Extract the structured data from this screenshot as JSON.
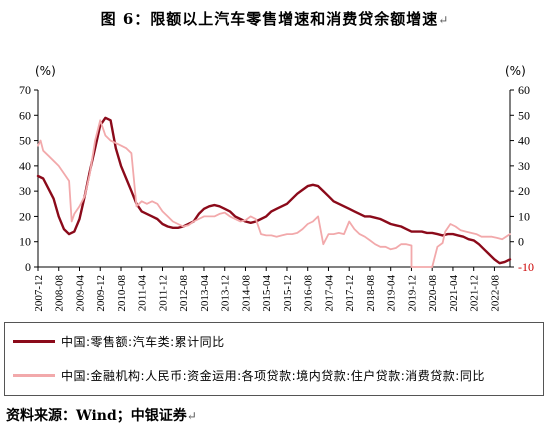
{
  "title": "图 6：限额以上汽车零售增速和消费贷余额增速",
  "title_mark": "↵",
  "source": "资料来源：Wind；中银证券",
  "source_mark": "↵",
  "chart_data": {
    "type": "line",
    "left_axis": {
      "unit": "(%)",
      "ylim": [
        0,
        70
      ],
      "ticks": [
        0,
        10,
        20,
        30,
        40,
        50,
        60,
        70
      ]
    },
    "right_axis": {
      "unit": "(%)",
      "ylim": [
        -10,
        60
      ],
      "ticks": [
        -10,
        0,
        10,
        20,
        30,
        40,
        50,
        60
      ],
      "tick_color_negative": "#cc0000"
    },
    "x_ticks": [
      "2007-12",
      "2008-08",
      "2009-04",
      "2009-12",
      "2010-08",
      "2011-04",
      "2011-12",
      "2012-08",
      "2013-04",
      "2013-12",
      "2014-08",
      "2015-04",
      "2015-12",
      "2016-08",
      "2017-04",
      "2017-12",
      "2018-08",
      "2019-04",
      "2019-12",
      "2020-08",
      "2021-04",
      "2021-12",
      "2022-08"
    ],
    "x_range": [
      "2007-12",
      "2023-02"
    ],
    "grid": false,
    "series": [
      {
        "name": "中国:零售额:汽车类:累计同比",
        "axis": "left",
        "color": "#8b0a1a",
        "points": [
          [
            "2007-12",
            36
          ],
          [
            "2008-02",
            35
          ],
          [
            "2008-04",
            31
          ],
          [
            "2008-06",
            27
          ],
          [
            "2008-08",
            20
          ],
          [
            "2008-10",
            15
          ],
          [
            "2008-12",
            13
          ],
          [
            "2009-02",
            14
          ],
          [
            "2009-04",
            19
          ],
          [
            "2009-06",
            28
          ],
          [
            "2009-08",
            38
          ],
          [
            "2009-10",
            47
          ],
          [
            "2009-12",
            56
          ],
          [
            "2010-02",
            59
          ],
          [
            "2010-04",
            58
          ],
          [
            "2010-06",
            47
          ],
          [
            "2010-08",
            40
          ],
          [
            "2010-10",
            35
          ],
          [
            "2010-12",
            30
          ],
          [
            "2011-02",
            25
          ],
          [
            "2011-04",
            22
          ],
          [
            "2011-06",
            21
          ],
          [
            "2011-08",
            20
          ],
          [
            "2011-10",
            19
          ],
          [
            "2011-12",
            17
          ],
          [
            "2012-02",
            16
          ],
          [
            "2012-04",
            15.5
          ],
          [
            "2012-06",
            15.5
          ],
          [
            "2012-08",
            16
          ],
          [
            "2012-10",
            17
          ],
          [
            "2012-12",
            18
          ],
          [
            "2013-02",
            21
          ],
          [
            "2013-04",
            23
          ],
          [
            "2013-06",
            24
          ],
          [
            "2013-08",
            24.5
          ],
          [
            "2013-10",
            24
          ],
          [
            "2013-12",
            23
          ],
          [
            "2014-02",
            22
          ],
          [
            "2014-04",
            20
          ],
          [
            "2014-06",
            19
          ],
          [
            "2014-08",
            18
          ],
          [
            "2014-10",
            17.5
          ],
          [
            "2014-12",
            18
          ],
          [
            "2015-02",
            19
          ],
          [
            "2015-04",
            20
          ],
          [
            "2015-06",
            22
          ],
          [
            "2015-08",
            23
          ],
          [
            "2015-10",
            24
          ],
          [
            "2015-12",
            25
          ],
          [
            "2016-02",
            27
          ],
          [
            "2016-04",
            29
          ],
          [
            "2016-06",
            30.5
          ],
          [
            "2016-08",
            32
          ],
          [
            "2016-10",
            32.5
          ],
          [
            "2016-12",
            32
          ],
          [
            "2017-02",
            30
          ],
          [
            "2017-04",
            28
          ],
          [
            "2017-06",
            26
          ],
          [
            "2017-08",
            25
          ],
          [
            "2017-10",
            24
          ],
          [
            "2017-12",
            23
          ],
          [
            "2018-02",
            22
          ],
          [
            "2018-04",
            21
          ],
          [
            "2018-06",
            20
          ],
          [
            "2018-08",
            20
          ],
          [
            "2018-10",
            19.5
          ],
          [
            "2018-12",
            19
          ],
          [
            "2019-02",
            18
          ],
          [
            "2019-04",
            17
          ],
          [
            "2019-06",
            16.5
          ],
          [
            "2019-08",
            16
          ],
          [
            "2019-10",
            15
          ],
          [
            "2019-12",
            14
          ],
          [
            "2020-02",
            14
          ],
          [
            "2020-04",
            14
          ],
          [
            "2020-06",
            13.5
          ],
          [
            "2020-08",
            13.5
          ],
          [
            "2020-10",
            13
          ],
          [
            "2020-12",
            12.5
          ],
          [
            "2021-02",
            13
          ],
          [
            "2021-04",
            13
          ],
          [
            "2021-06",
            12.5
          ],
          [
            "2021-08",
            12
          ],
          [
            "2021-10",
            11
          ],
          [
            "2021-12",
            10.5
          ],
          [
            "2022-02",
            9
          ],
          [
            "2022-04",
            7
          ],
          [
            "2022-06",
            5
          ],
          [
            "2022-08",
            3
          ],
          [
            "2022-10",
            1.5
          ],
          [
            "2022-12",
            2
          ],
          [
            "2023-02",
            3
          ]
        ]
      },
      {
        "name": "中国:金融机构:人民币:资金运用:各项贷款:境内贷款:住户贷款:消费贷款:同比",
        "axis": "right",
        "color": "#f2a9ab",
        "points": [
          [
            "2007-12",
            38
          ],
          [
            "2008-01",
            40
          ],
          [
            "2008-02",
            36
          ],
          [
            "2008-04",
            34
          ],
          [
            "2008-06",
            32
          ],
          [
            "2008-08",
            30
          ],
          [
            "2008-10",
            27
          ],
          [
            "2008-12",
            24
          ],
          [
            "2009-01",
            8
          ],
          [
            "2009-02",
            11
          ],
          [
            "2009-04",
            14
          ],
          [
            "2009-06",
            18
          ],
          [
            "2009-08",
            27
          ],
          [
            "2009-10",
            40
          ],
          [
            "2009-12",
            48
          ],
          [
            "2010-02",
            42
          ],
          [
            "2010-04",
            40
          ],
          [
            "2010-06",
            39
          ],
          [
            "2010-08",
            38
          ],
          [
            "2010-10",
            37
          ],
          [
            "2010-12",
            35
          ],
          [
            "2011-02",
            14
          ],
          [
            "2011-04",
            16
          ],
          [
            "2011-06",
            15
          ],
          [
            "2011-08",
            16
          ],
          [
            "2011-10",
            15
          ],
          [
            "2011-12",
            12
          ],
          [
            "2012-02",
            10
          ],
          [
            "2012-04",
            8
          ],
          [
            "2012-06",
            7
          ],
          [
            "2012-08",
            6
          ],
          [
            "2012-10",
            6.5
          ],
          [
            "2012-12",
            8
          ],
          [
            "2013-02",
            9
          ],
          [
            "2013-04",
            10
          ],
          [
            "2013-06",
            10
          ],
          [
            "2013-08",
            10
          ],
          [
            "2013-10",
            11
          ],
          [
            "2013-12",
            11.5
          ],
          [
            "2014-02",
            10
          ],
          [
            "2014-04",
            9
          ],
          [
            "2014-06",
            8
          ],
          [
            "2014-08",
            8.5
          ],
          [
            "2014-10",
            10
          ],
          [
            "2014-12",
            9
          ],
          [
            "2015-02",
            3
          ],
          [
            "2015-04",
            2.5
          ],
          [
            "2015-06",
            2.5
          ],
          [
            "2015-08",
            2
          ],
          [
            "2015-10",
            2.5
          ],
          [
            "2015-12",
            3
          ],
          [
            "2016-02",
            3
          ],
          [
            "2016-04",
            3.5
          ],
          [
            "2016-06",
            5
          ],
          [
            "2016-08",
            7
          ],
          [
            "2016-10",
            8
          ],
          [
            "2016-12",
            10
          ],
          [
            "2017-02",
            -1
          ],
          [
            "2017-04",
            3
          ],
          [
            "2017-06",
            3
          ],
          [
            "2017-08",
            3.5
          ],
          [
            "2017-10",
            3
          ],
          [
            "2017-12",
            8
          ],
          [
            "2018-02",
            5
          ],
          [
            "2018-04",
            3
          ],
          [
            "2018-06",
            2
          ],
          [
            "2018-08",
            0.5
          ],
          [
            "2018-10",
            -1
          ],
          [
            "2018-12",
            -2
          ],
          [
            "2019-02",
            -2
          ],
          [
            "2019-04",
            -3
          ],
          [
            "2019-06",
            -2.5
          ],
          [
            "2019-08",
            -1
          ],
          [
            "2019-10",
            -1
          ],
          [
            "2019-12",
            -1.5
          ],
          [
            "2019-12",
            -10
          ],
          [
            "2020-08",
            -10
          ],
          [
            "2020-09",
            -6
          ],
          [
            "2020-10",
            -2
          ],
          [
            "2020-12",
            -0.5
          ],
          [
            "2021-01",
            4
          ],
          [
            "2021-03",
            7
          ],
          [
            "2021-05",
            6
          ],
          [
            "2021-07",
            4.5
          ],
          [
            "2021-09",
            4
          ],
          [
            "2021-11",
            3.5
          ],
          [
            "2022-01",
            3
          ],
          [
            "2022-03",
            2
          ],
          [
            "2022-05",
            2
          ],
          [
            "2022-07",
            2
          ],
          [
            "2022-09",
            1.5
          ],
          [
            "2022-11",
            1
          ],
          [
            "2023-02",
            3
          ]
        ]
      }
    ]
  }
}
